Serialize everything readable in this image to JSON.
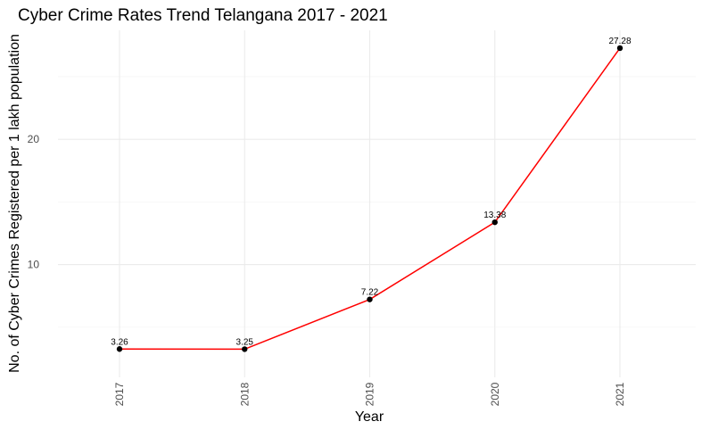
{
  "chart_data": {
    "type": "line",
    "title": "Cyber Crime Rates Trend Telangana 2017 - 2021",
    "xlabel": "Year",
    "ylabel": "No. of Cyber Crimes Registered per 1 lakh population",
    "categories": [
      "2017",
      "2018",
      "2019",
      "2020",
      "2021"
    ],
    "series": [
      {
        "values": [
          3.26,
          3.25,
          7.22,
          13.38,
          27.28
        ],
        "labels": [
          "3.26",
          "3.25",
          "7.22",
          "13.38",
          "27.28"
        ],
        "color": "#ff0000",
        "point_color": "#000000"
      }
    ],
    "yticks": [
      10,
      20
    ],
    "ytick_labels": [
      "10",
      "20"
    ],
    "ylim": [
      1.0,
      28.7
    ],
    "grid": true,
    "legend": "none"
  }
}
